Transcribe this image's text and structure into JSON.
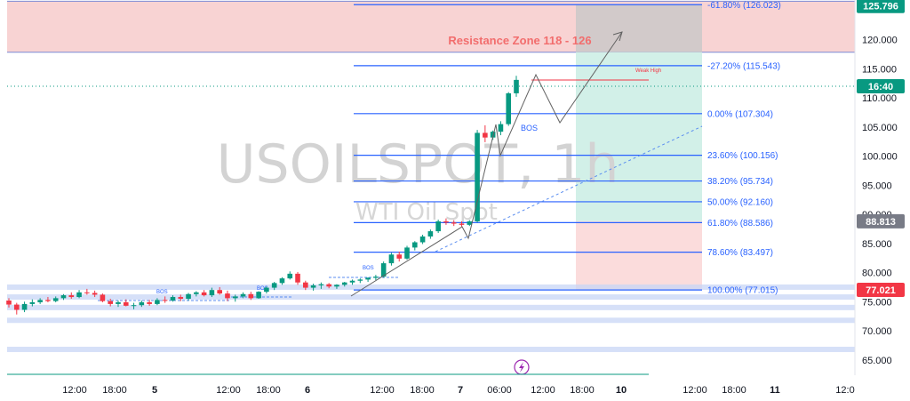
{
  "watermark": {
    "symbol": "USOILSPOT, 1h",
    "description": "WTI Oil Spot"
  },
  "resistance_label": "Resistance Zone 118 - 126",
  "annotations": {
    "weak_high": "Weak High",
    "bos_main": "BOS",
    "bos_small": [
      "BOS",
      "BOS",
      "BOS"
    ]
  },
  "price_badges": [
    {
      "text": "125.796",
      "value": 125.796,
      "color": "#089981"
    },
    {
      "text": "16:40",
      "value": 112.0,
      "color": "#089981"
    },
    {
      "text": "88.813",
      "value": 88.813,
      "color": "#787b86"
    },
    {
      "text": "77.021",
      "value": 77.021,
      "color": "#f23645"
    }
  ],
  "colors": {
    "up": "#089981",
    "down": "#f23645",
    "fib": "#2962ff",
    "resistance_fill": "#f8d3d3",
    "resistance_text": "#f26d6d",
    "profit_fill": "#d2f0e8",
    "loss_fill": "#fbdcdc",
    "projection": "#616161"
  },
  "chart_data": {
    "type": "candlestick",
    "title": "USOILSPOT, 1h",
    "subtitle": "WTI Oil Spot",
    "y_axis": {
      "ticks": [
        "65.000",
        "70.000",
        "75.000",
        "80.000",
        "85.000",
        "90.000",
        "95.000",
        "100.000",
        "105.000",
        "110.000",
        "115.000",
        "120.000"
      ],
      "range": [
        63,
        127
      ]
    },
    "x_axis": {
      "ticks": [
        "12:00",
        "18:00",
        "5",
        "12:00",
        "18:00",
        "6",
        "12:00",
        "18:00",
        "7",
        "06:00",
        "12:00",
        "18:00",
        "10",
        "12:00",
        "18:00",
        "11",
        "12:0"
      ]
    },
    "fibonacci": [
      {
        "ratio": -61.8,
        "label": "-61.80% (126.023)",
        "price": 126.023
      },
      {
        "ratio": -27.2,
        "label": "-27.20% (115.543)",
        "price": 115.543
      },
      {
        "ratio": 0,
        "label": "0.00% (107.304)",
        "price": 107.304
      },
      {
        "ratio": 23.6,
        "label": "23.60% (100.156)",
        "price": 100.156
      },
      {
        "ratio": 38.2,
        "label": "38.20% (95.734)",
        "price": 95.734
      },
      {
        "ratio": 50,
        "label": "50.00% (92.160)",
        "price": 92.16
      },
      {
        "ratio": 61.8,
        "label": "61.80% (88.586)",
        "price": 88.586
      },
      {
        "ratio": 78.6,
        "label": "78.60% (83.497)",
        "price": 83.497
      },
      {
        "ratio": 100,
        "label": "100.00% (77.015)",
        "price": 77.015
      }
    ],
    "resistance_zone": [
      118,
      126
    ],
    "position": {
      "entry": 88.813,
      "target": 125.796,
      "stop": 77.021
    },
    "support_bands": [
      77.5,
      75.8,
      74.0,
      71.8,
      66.8
    ],
    "series": [
      {
        "candles": [
          [
            75.2,
            75.6,
            74.0,
            74.5
          ],
          [
            74.5,
            74.8,
            72.8,
            73.6
          ],
          [
            73.6,
            75.0,
            73.2,
            74.6
          ],
          [
            74.6,
            75.4,
            74.2,
            74.9
          ],
          [
            74.9,
            75.6,
            74.6,
            75.3
          ],
          [
            75.3,
            75.8,
            74.9,
            75.1
          ],
          [
            75.1,
            75.9,
            74.9,
            75.6
          ],
          [
            75.6,
            76.3,
            75.3,
            76.1
          ],
          [
            76.1,
            76.6,
            75.5,
            75.8
          ],
          [
            75.8,
            77.0,
            75.6,
            76.6
          ],
          [
            76.6,
            77.2,
            76.2,
            76.5
          ],
          [
            76.5,
            76.9,
            75.8,
            76.2
          ],
          [
            76.2,
            76.4,
            74.9,
            75.1
          ],
          [
            75.1,
            75.5,
            74.2,
            74.6
          ],
          [
            74.6,
            75.2,
            74.1,
            74.9
          ],
          [
            74.9,
            75.4,
            74.2,
            74.3
          ],
          [
            74.3,
            74.8,
            73.7,
            74.4
          ],
          [
            74.4,
            75.2,
            74.1,
            74.9
          ],
          [
            74.9,
            75.3,
            74.3,
            74.6
          ],
          [
            74.6,
            75.6,
            74.4,
            75.3
          ],
          [
            75.3,
            75.9,
            74.8,
            75.2
          ],
          [
            75.2,
            76.1,
            75.0,
            75.8
          ],
          [
            75.8,
            76.2,
            75.1,
            75.5
          ],
          [
            75.5,
            76.5,
            75.2,
            76.3
          ],
          [
            76.3,
            76.8,
            75.9,
            76.6
          ],
          [
            76.6,
            77.0,
            75.9,
            76.1
          ],
          [
            76.1,
            77.4,
            75.8,
            77.0
          ],
          [
            77.0,
            77.5,
            76.2,
            76.4
          ],
          [
            76.4,
            76.9,
            75.1,
            75.6
          ],
          [
            75.6,
            76.2,
            75.0,
            75.9
          ],
          [
            75.9,
            76.6,
            75.6,
            76.3
          ],
          [
            76.3,
            76.7,
            75.3,
            75.6
          ],
          [
            75.6,
            76.8,
            75.5,
            76.7
          ],
          [
            76.7,
            77.6,
            76.4,
            77.4
          ],
          [
            77.4,
            78.4,
            77.0,
            78.2
          ],
          [
            78.2,
            79.2,
            77.9,
            79.0
          ],
          [
            79.0,
            80.2,
            78.8,
            79.8
          ],
          [
            79.8,
            80.1,
            77.9,
            78.3
          ],
          [
            78.3,
            78.6,
            77.0,
            77.4
          ],
          [
            77.4,
            78.1,
            76.9,
            77.8
          ],
          [
            77.8,
            78.3,
            77.2,
            78.0
          ],
          [
            78.0,
            78.2,
            77.3,
            77.6
          ],
          [
            77.6,
            78.0,
            77.2,
            77.9
          ],
          [
            77.9,
            78.4,
            77.6,
            78.3
          ],
          [
            78.3,
            78.8,
            77.9,
            78.6
          ],
          [
            78.6,
            79.0,
            78.2,
            78.8
          ],
          [
            78.8,
            79.2,
            78.4,
            79.1
          ],
          [
            79.1,
            79.6,
            78.7,
            79.3
          ],
          [
            79.3,
            81.9,
            79.1,
            81.6
          ],
          [
            81.6,
            83.4,
            81.2,
            83.1
          ],
          [
            83.1,
            83.6,
            81.9,
            82.4
          ],
          [
            82.4,
            84.6,
            82.2,
            84.3
          ],
          [
            84.3,
            85.4,
            83.8,
            85.2
          ],
          [
            85.2,
            86.5,
            84.9,
            86.2
          ],
          [
            86.2,
            87.4,
            85.8,
            87.1
          ],
          [
            87.1,
            89.1,
            86.8,
            88.8
          ],
          [
            88.8,
            89.3,
            88.2,
            88.6
          ],
          [
            88.6,
            89.0,
            88.0,
            88.4
          ],
          [
            88.4,
            88.8,
            87.9,
            88.2
          ],
          [
            88.2,
            89.0,
            88.0,
            88.8
          ],
          [
            88.8,
            104.5,
            88.6,
            104.0
          ],
          [
            104.0,
            105.3,
            102.4,
            103.2
          ],
          [
            103.2,
            104.4,
            102.8,
            104.2
          ],
          [
            104.2,
            106.0,
            103.6,
            105.5
          ],
          [
            105.5,
            111.0,
            105.2,
            110.8
          ],
          [
            110.8,
            113.8,
            110.2,
            113.1
          ]
        ]
      }
    ]
  }
}
